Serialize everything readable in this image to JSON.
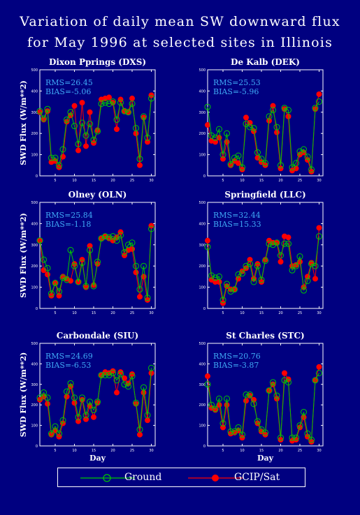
{
  "title": {
    "line1": "Variation of daily mean SW downward flux",
    "line2": "for May 1996 at selected sites in Illinois"
  },
  "colors": {
    "background": "#000080",
    "ground": "#00c800",
    "sat": "#ff0000",
    "stats_text": "#3fa9f5",
    "axes": "#ffffff"
  },
  "legend": {
    "ground_label": "Ground",
    "sat_label": "GCIP/Sat"
  },
  "chart_data": [
    {
      "type": "line",
      "title": "Dixon Pprings (DXS)",
      "ylabel": "SWD Flux (W/m**2)",
      "xlabel": "",
      "xlim": [
        1,
        31
      ],
      "ylim": [
        0,
        500
      ],
      "xticks": [
        5,
        10,
        15,
        20,
        25,
        30
      ],
      "yticks": [
        0,
        100,
        200,
        300,
        400,
        500
      ],
      "rms_text": "RMS=26.45",
      "bias_text": "BIAS=-5.06",
      "x": [
        1,
        2,
        3,
        4,
        5,
        6,
        7,
        8,
        9,
        10,
        11,
        12,
        13,
        14,
        15,
        16,
        17,
        18,
        19,
        20,
        21,
        22,
        23,
        24,
        25,
        26,
        27,
        28,
        29,
        30
      ],
      "series": [
        {
          "name": "Ground",
          "values": [
            305,
            270,
            315,
            85,
            85,
            50,
            125,
            265,
            300,
            235,
            150,
            250,
            190,
            245,
            170,
            210,
            340,
            345,
            340,
            350,
            265,
            345,
            305,
            300,
            340,
            225,
            80,
            280,
            180,
            365
          ]
        },
        {
          "name": "GCIP/Sat",
          "values": [
            300,
            265,
            305,
            65,
            70,
            40,
            90,
            255,
            285,
            330,
            120,
            345,
            140,
            300,
            155,
            215,
            360,
            365,
            370,
            345,
            220,
            360,
            305,
            300,
            365,
            200,
            50,
            275,
            160,
            380
          ]
        }
      ]
    },
    {
      "type": "line",
      "title": "De Kalb (DEK)",
      "ylabel": "",
      "xlabel": "",
      "xlim": [
        1,
        31
      ],
      "ylim": [
        0,
        500
      ],
      "xticks": [
        5,
        10,
        15,
        20,
        25,
        30
      ],
      "yticks": [
        0,
        100,
        200,
        300,
        400,
        500
      ],
      "rms_text": "RMS=25.53",
      "bias_text": "BIAS=-5.96",
      "x": [
        1,
        2,
        3,
        4,
        5,
        6,
        7,
        8,
        9,
        10,
        11,
        12,
        13,
        14,
        15,
        16,
        17,
        18,
        19,
        20,
        21,
        22,
        23,
        24,
        25,
        26,
        27,
        28,
        29,
        30
      ],
      "series": [
        {
          "name": "Ground",
          "values": [
            325,
            190,
            180,
            220,
            100,
            200,
            55,
            85,
            95,
            40,
            245,
            230,
            225,
            110,
            80,
            60,
            280,
            310,
            230,
            50,
            320,
            310,
            40,
            60,
            115,
            125,
            90,
            30,
            320,
            350
          ]
        },
        {
          "name": "GCIP/Sat",
          "values": [
            240,
            165,
            160,
            180,
            80,
            160,
            50,
            70,
            60,
            30,
            275,
            250,
            210,
            85,
            65,
            50,
            260,
            330,
            205,
            35,
            315,
            280,
            25,
            35,
            100,
            110,
            75,
            20,
            315,
            385
          ]
        }
      ]
    },
    {
      "type": "line",
      "title": "Olney (OLN)",
      "ylabel": "SWD Flux (W/m**2)",
      "xlabel": "",
      "xlim": [
        1,
        31
      ],
      "ylim": [
        0,
        500
      ],
      "xticks": [
        5,
        10,
        15,
        20,
        25,
        30
      ],
      "yticks": [
        0,
        100,
        200,
        300,
        400,
        500
      ],
      "rms_text": "RMS=25.84",
      "bias_text": "BIAS=-1.18",
      "x": [
        1,
        2,
        3,
        4,
        5,
        6,
        7,
        8,
        9,
        10,
        11,
        12,
        13,
        14,
        15,
        16,
        17,
        18,
        19,
        20,
        21,
        22,
        23,
        24,
        25,
        26,
        27,
        28,
        29,
        30
      ],
      "series": [
        {
          "name": "Ground",
          "values": [
            320,
            230,
            190,
            70,
            120,
            80,
            145,
            135,
            275,
            200,
            125,
            215,
            105,
            275,
            105,
            220,
            330,
            340,
            335,
            340,
            320,
            345,
            265,
            300,
            310,
            200,
            90,
            200,
            50,
            375
          ]
        },
        {
          "name": "GCIP/Sat",
          "values": [
            320,
            180,
            160,
            60,
            120,
            60,
            150,
            140,
            130,
            210,
            125,
            230,
            100,
            295,
            110,
            210,
            330,
            340,
            330,
            320,
            335,
            360,
            250,
            275,
            280,
            170,
            55,
            150,
            40,
            390
          ]
        }
      ]
    },
    {
      "type": "line",
      "title": "Springfield (LLC)",
      "ylabel": "",
      "xlabel": "",
      "xlim": [
        1,
        31
      ],
      "ylim": [
        0,
        500
      ],
      "xticks": [
        5,
        10,
        15,
        20,
        25,
        30
      ],
      "yticks": [
        0,
        100,
        200,
        300,
        400,
        500
      ],
      "rms_text": "RMS=32.44",
      "bias_text": "BIAS=15.33",
      "x": [
        1,
        2,
        3,
        4,
        5,
        6,
        7,
        8,
        9,
        10,
        11,
        12,
        13,
        14,
        15,
        16,
        17,
        18,
        19,
        20,
        21,
        22,
        23,
        24,
        25,
        26,
        27,
        28,
        29,
        30
      ],
      "series": [
        {
          "name": "Ground",
          "values": [
            290,
            155,
            145,
            150,
            40,
            115,
            80,
            90,
            160,
            165,
            200,
            210,
            125,
            200,
            135,
            225,
            305,
            300,
            310,
            250,
            305,
            305,
            180,
            200,
            245,
            85,
            130,
            210,
            200,
            340
          ]
        },
        {
          "name": "GCIP/Sat",
          "values": [
            320,
            135,
            125,
            125,
            25,
            105,
            90,
            90,
            140,
            175,
            190,
            230,
            140,
            210,
            125,
            230,
            320,
            310,
            310,
            220,
            340,
            335,
            200,
            205,
            220,
            100,
            150,
            215,
            140,
            380
          ]
        }
      ]
    },
    {
      "type": "line",
      "title": "Carbondale (SIU)",
      "ylabel": "SWD Flux (W/m**2)",
      "xlabel": "Day",
      "xlim": [
        1,
        31
      ],
      "ylim": [
        0,
        500
      ],
      "xticks": [
        5,
        10,
        15,
        20,
        25,
        30
      ],
      "yticks": [
        0,
        100,
        200,
        300,
        400,
        500
      ],
      "rms_text": "RMS=24.69",
      "bias_text": "BIAS=-6.53",
      "x": [
        1,
        2,
        3,
        4,
        5,
        6,
        7,
        8,
        9,
        10,
        11,
        12,
        13,
        14,
        15,
        16,
        17,
        18,
        19,
        20,
        21,
        22,
        23,
        24,
        25,
        26,
        27,
        28,
        29,
        30
      ],
      "series": [
        {
          "name": "Ground",
          "values": [
            235,
            260,
            235,
            60,
            95,
            60,
            125,
            265,
            305,
            235,
            140,
            235,
            150,
            215,
            175,
            215,
            345,
            345,
            345,
            355,
            320,
            350,
            300,
            290,
            340,
            210,
            80,
            285,
            150,
            380
          ]
        },
        {
          "name": "GCIP/Sat",
          "values": [
            225,
            240,
            205,
            55,
            75,
            45,
            110,
            240,
            290,
            210,
            120,
            225,
            130,
            195,
            140,
            210,
            345,
            360,
            355,
            365,
            260,
            360,
            330,
            305,
            350,
            205,
            55,
            260,
            125,
            355
          ]
        }
      ]
    },
    {
      "type": "line",
      "title": "St Charles (STC)",
      "ylabel": "",
      "xlabel": "Day",
      "xlim": [
        1,
        31
      ],
      "ylim": [
        0,
        500
      ],
      "xticks": [
        5,
        10,
        15,
        20,
        25,
        30
      ],
      "yticks": [
        0,
        100,
        200,
        300,
        400,
        500
      ],
      "rms_text": "RMS=20.76",
      "bias_text": "BIAS=-3.87",
      "x": [
        1,
        2,
        3,
        4,
        5,
        6,
        7,
        8,
        9,
        10,
        11,
        12,
        13,
        14,
        15,
        16,
        17,
        18,
        19,
        20,
        21,
        22,
        23,
        24,
        25,
        26,
        27,
        28,
        29,
        30
      ],
      "series": [
        {
          "name": "Ground",
          "values": [
            300,
            200,
            180,
            230,
            110,
            230,
            70,
            70,
            90,
            55,
            250,
            250,
            205,
            120,
            80,
            65,
            270,
            310,
            245,
            40,
            320,
            310,
            40,
            40,
            100,
            165,
            60,
            30,
            320,
            355
          ]
        },
        {
          "name": "GCIP/Sat",
          "values": [
            340,
            185,
            175,
            200,
            90,
            200,
            60,
            65,
            75,
            40,
            220,
            245,
            225,
            110,
            70,
            55,
            270,
            300,
            230,
            30,
            355,
            325,
            25,
            30,
            90,
            140,
            45,
            20,
            320,
            385
          ]
        }
      ]
    }
  ]
}
